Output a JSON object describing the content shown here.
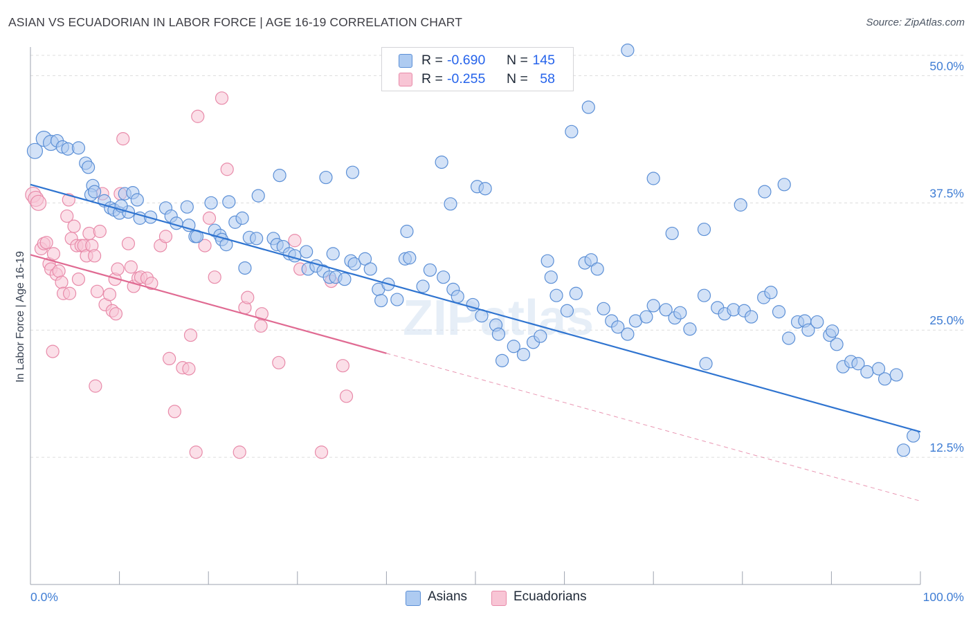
{
  "title": "ASIAN VS ECUADORIAN IN LABOR FORCE | AGE 16-19 CORRELATION CHART",
  "source": "Source: ZipAtlas.com",
  "colors": {
    "asian_fill": "#aecbf1",
    "asian_stroke": "#5b8fd6",
    "asian_line": "#2f74d0",
    "ecuador_fill": "#f8c5d5",
    "ecuador_stroke": "#e88aa9",
    "ecuador_line": "#e06a92",
    "axis_label": "#3f7dd4",
    "grid": "#dcdcdc"
  },
  "legend": {
    "rows": [
      {
        "r_label": "R =",
        "r_value": "-0.690",
        "n_label": "N =",
        "n_value": "145"
      },
      {
        "r_label": "R =",
        "r_value": "-0.255",
        "n_label": "N =",
        "n_value": "58"
      }
    ]
  },
  "bottom_legend": {
    "asians": "Asians",
    "ecuadorians": "Ecuadorians"
  },
  "chart_data": {
    "type": "scatter",
    "title": "ASIAN VS ECUADORIAN IN LABOR FORCE | AGE 16-19 CORRELATION CHART",
    "xlabel": "",
    "ylabel": "In Labor Force | Age 16-19",
    "xlim": [
      0,
      100
    ],
    "ylim": [
      0,
      52
    ],
    "x_tick_labels": [
      "0.0%",
      "100.0%"
    ],
    "y_ticks": [
      12.5,
      25.0,
      37.5,
      50.0
    ],
    "y_tick_labels": [
      "12.5%",
      "25.0%",
      "37.5%",
      "50.0%"
    ],
    "grid": true,
    "legend_position": "top-center",
    "watermark": "ZIPatlas",
    "series": [
      {
        "name": "Asians",
        "r": -0.69,
        "n": 145,
        "trend": {
          "x": [
            0,
            100
          ],
          "y": [
            39.3,
            15.0
          ],
          "dashed_x": null
        },
        "points": [
          [
            0.5,
            42.6
          ],
          [
            1.5,
            43.8
          ],
          [
            2.3,
            43.4
          ],
          [
            3.0,
            43.6
          ],
          [
            3.6,
            43.0
          ],
          [
            4.2,
            42.8
          ],
          [
            5.4,
            42.9
          ],
          [
            6.2,
            41.4
          ],
          [
            6.5,
            41.0
          ],
          [
            7.0,
            39.2
          ],
          [
            6.8,
            38.3
          ],
          [
            7.2,
            38.6
          ],
          [
            8.3,
            37.7
          ],
          [
            9.0,
            37.0
          ],
          [
            9.4,
            36.8
          ],
          [
            10.0,
            36.5
          ],
          [
            10.6,
            38.4
          ],
          [
            11.5,
            38.5
          ],
          [
            12.0,
            37.8
          ],
          [
            11.0,
            36.6
          ],
          [
            10.2,
            37.2
          ],
          [
            12.3,
            36.0
          ],
          [
            13.5,
            36.1
          ],
          [
            15.2,
            37.0
          ],
          [
            15.8,
            36.2
          ],
          [
            16.4,
            35.5
          ],
          [
            17.8,
            35.3
          ],
          [
            18.5,
            34.2
          ],
          [
            18.7,
            34.2
          ],
          [
            20.7,
            34.8
          ],
          [
            21.3,
            34.3
          ],
          [
            21.5,
            33.9
          ],
          [
            22.0,
            33.4
          ],
          [
            23.0,
            35.6
          ],
          [
            23.8,
            36.0
          ],
          [
            24.6,
            34.1
          ],
          [
            25.4,
            34.0
          ],
          [
            27.3,
            34.0
          ],
          [
            27.7,
            33.4
          ],
          [
            28.4,
            33.2
          ],
          [
            29.1,
            32.5
          ],
          [
            29.7,
            32.3
          ],
          [
            31.0,
            32.7
          ],
          [
            31.2,
            31.0
          ],
          [
            32.1,
            31.3
          ],
          [
            32.9,
            30.8
          ],
          [
            33.6,
            30.2
          ],
          [
            34.0,
            32.5
          ],
          [
            34.3,
            30.2
          ],
          [
            35.3,
            30.0
          ],
          [
            36.0,
            31.8
          ],
          [
            36.4,
            31.5
          ],
          [
            37.6,
            32.0
          ],
          [
            38.2,
            31.0
          ],
          [
            39.1,
            29.0
          ],
          [
            39.4,
            27.9
          ],
          [
            40.2,
            29.5
          ],
          [
            41.2,
            28.0
          ],
          [
            42.1,
            32.0
          ],
          [
            42.6,
            32.1
          ],
          [
            44.1,
            29.3
          ],
          [
            44.9,
            30.9
          ],
          [
            46.4,
            30.2
          ],
          [
            47.5,
            29.0
          ],
          [
            48.0,
            28.3
          ],
          [
            49.7,
            27.5
          ],
          [
            50.7,
            26.4
          ],
          [
            52.3,
            25.5
          ],
          [
            52.6,
            24.6
          ],
          [
            53.0,
            22.0
          ],
          [
            54.3,
            23.4
          ],
          [
            55.4,
            22.6
          ],
          [
            56.5,
            23.8
          ],
          [
            57.3,
            24.4
          ],
          [
            58.1,
            31.8
          ],
          [
            58.5,
            30.2
          ],
          [
            59.1,
            28.4
          ],
          [
            60.3,
            26.9
          ],
          [
            61.3,
            28.6
          ],
          [
            62.3,
            31.6
          ],
          [
            63.0,
            31.9
          ],
          [
            63.7,
            31.0
          ],
          [
            64.4,
            27.1
          ],
          [
            65.3,
            25.9
          ],
          [
            66.0,
            25.3
          ],
          [
            67.1,
            24.6
          ],
          [
            68.0,
            25.9
          ],
          [
            69.2,
            26.3
          ],
          [
            70.0,
            27.4
          ],
          [
            71.4,
            27.0
          ],
          [
            72.4,
            26.2
          ],
          [
            73.0,
            26.7
          ],
          [
            74.1,
            25.1
          ],
          [
            75.7,
            28.4
          ],
          [
            75.9,
            21.7
          ],
          [
            77.2,
            27.2
          ],
          [
            78.0,
            26.6
          ],
          [
            79.0,
            27.0
          ],
          [
            80.2,
            26.9
          ],
          [
            81.0,
            26.3
          ],
          [
            82.4,
            28.2
          ],
          [
            83.2,
            28.7
          ],
          [
            84.1,
            26.8
          ],
          [
            85.2,
            24.2
          ],
          [
            86.2,
            25.8
          ],
          [
            87.0,
            25.9
          ],
          [
            87.4,
            25.0
          ],
          [
            88.4,
            25.8
          ],
          [
            89.8,
            24.5
          ],
          [
            90.1,
            24.9
          ],
          [
            90.6,
            23.6
          ],
          [
            91.3,
            21.4
          ],
          [
            92.2,
            21.9
          ],
          [
            93.0,
            21.7
          ],
          [
            94.0,
            20.9
          ],
          [
            95.3,
            21.2
          ],
          [
            96.0,
            20.2
          ],
          [
            97.3,
            20.6
          ],
          [
            98.1,
            13.2
          ],
          [
            99.2,
            14.6
          ],
          [
            22.3,
            37.6
          ],
          [
            20.3,
            37.5
          ],
          [
            28.0,
            40.2
          ],
          [
            33.2,
            40.0
          ],
          [
            36.2,
            40.5
          ],
          [
            17.6,
            37.1
          ],
          [
            25.6,
            38.2
          ],
          [
            24.1,
            31.1
          ],
          [
            42.3,
            34.7
          ],
          [
            46.2,
            41.5
          ],
          [
            47.2,
            37.4
          ],
          [
            50.2,
            39.1
          ],
          [
            51.1,
            38.9
          ],
          [
            60.8,
            44.5
          ],
          [
            62.7,
            46.9
          ],
          [
            67.1,
            52.5
          ],
          [
            59.0,
            50.1
          ],
          [
            58.1,
            50.2
          ],
          [
            70.0,
            39.9
          ],
          [
            72.1,
            34.5
          ],
          [
            75.7,
            34.9
          ],
          [
            79.8,
            37.3
          ],
          [
            82.5,
            38.6
          ],
          [
            84.7,
            39.3
          ]
        ]
      },
      {
        "name": "Ecuadorians",
        "r": -0.255,
        "n": 58,
        "trend": {
          "x": [
            0,
            100
          ],
          "y": [
            32.4,
            8.2
          ],
          "solid_until_x": 40
        },
        "points": [
          [
            0.3,
            38.3
          ],
          [
            0.6,
            37.9
          ],
          [
            0.9,
            37.5
          ],
          [
            1.2,
            33.0
          ],
          [
            1.5,
            33.5
          ],
          [
            1.8,
            33.6
          ],
          [
            2.1,
            31.5
          ],
          [
            2.3,
            31.0
          ],
          [
            2.6,
            32.5
          ],
          [
            2.9,
            30.5
          ],
          [
            3.2,
            30.8
          ],
          [
            3.5,
            29.7
          ],
          [
            3.7,
            28.6
          ],
          [
            4.1,
            36.2
          ],
          [
            4.4,
            28.6
          ],
          [
            4.6,
            34.0
          ],
          [
            4.9,
            35.2
          ],
          [
            5.2,
            33.3
          ],
          [
            5.4,
            30.0
          ],
          [
            5.7,
            33.3
          ],
          [
            6.0,
            33.3
          ],
          [
            6.3,
            32.3
          ],
          [
            6.6,
            34.5
          ],
          [
            6.9,
            33.3
          ],
          [
            7.2,
            32.3
          ],
          [
            7.5,
            28.8
          ],
          [
            7.8,
            34.7
          ],
          [
            8.1,
            38.4
          ],
          [
            8.4,
            27.5
          ],
          [
            8.9,
            28.5
          ],
          [
            9.2,
            26.9
          ],
          [
            9.5,
            30.0
          ],
          [
            9.8,
            31.0
          ],
          [
            10.1,
            38.4
          ],
          [
            10.4,
            43.8
          ],
          [
            11.0,
            33.5
          ],
          [
            11.3,
            31.2
          ],
          [
            11.6,
            29.3
          ],
          [
            12.1,
            30.1
          ],
          [
            12.4,
            30.2
          ],
          [
            13.1,
            30.1
          ],
          [
            13.6,
            29.6
          ],
          [
            14.6,
            33.3
          ],
          [
            15.2,
            34.2
          ],
          [
            15.6,
            22.2
          ],
          [
            16.2,
            17.0
          ],
          [
            17.1,
            21.3
          ],
          [
            17.8,
            21.2
          ],
          [
            18.0,
            24.5
          ],
          [
            18.8,
            46.0
          ],
          [
            19.6,
            33.3
          ],
          [
            20.1,
            36.0
          ],
          [
            20.7,
            30.2
          ],
          [
            21.5,
            47.8
          ],
          [
            22.1,
            40.8
          ],
          [
            24.1,
            27.2
          ],
          [
            25.9,
            25.4
          ],
          [
            27.9,
            21.8
          ],
          [
            33.8,
            29.8
          ],
          [
            35.1,
            21.5
          ],
          [
            29.7,
            33.8
          ],
          [
            30.3,
            31.0
          ],
          [
            24.4,
            28.2
          ],
          [
            26.0,
            26.6
          ],
          [
            4.3,
            37.8
          ],
          [
            2.5,
            22.9
          ],
          [
            7.3,
            19.5
          ],
          [
            9.6,
            26.6
          ],
          [
            18.6,
            13.0
          ],
          [
            23.5,
            13.0
          ],
          [
            32.7,
            13.0
          ],
          [
            35.5,
            18.5
          ]
        ]
      }
    ]
  }
}
